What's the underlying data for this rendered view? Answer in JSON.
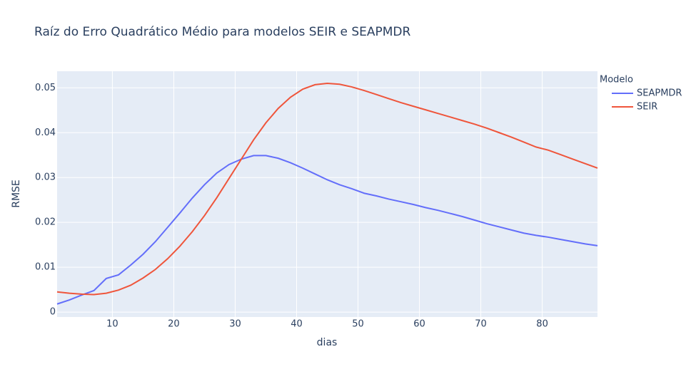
{
  "chart_data": {
    "type": "line",
    "title": "Raíz do Erro Quadrático Médio para modelos SEIR e SEAPMDR",
    "x_label": "dias",
    "y_label": "RMSE",
    "legend_title": "Modelo",
    "x": [
      1,
      3,
      5,
      7,
      9,
      11,
      13,
      15,
      17,
      19,
      21,
      23,
      25,
      27,
      29,
      31,
      33,
      35,
      37,
      39,
      41,
      43,
      45,
      47,
      49,
      51,
      53,
      55,
      57,
      59,
      61,
      63,
      65,
      67,
      69,
      71,
      73,
      75,
      77,
      79,
      81,
      83,
      85,
      87,
      89
    ],
    "series": [
      {
        "name": "SEAPMDR",
        "color": "#636efa",
        "values": [
          0.0018,
          0.0027,
          0.0038,
          0.0048,
          0.0075,
          0.0083,
          0.0105,
          0.0129,
          0.0157,
          0.0189,
          0.0221,
          0.0254,
          0.0284,
          0.031,
          0.0329,
          0.0341,
          0.0349,
          0.0349,
          0.0343,
          0.0333,
          0.0321,
          0.0308,
          0.0295,
          0.0284,
          0.0275,
          0.0265,
          0.0259,
          0.0252,
          0.0246,
          0.024,
          0.0233,
          0.0227,
          0.022,
          0.0213,
          0.0205,
          0.0197,
          0.019,
          0.0183,
          0.0176,
          0.0171,
          0.0167,
          0.0162,
          0.0157,
          0.0152,
          0.0148
        ]
      },
      {
        "name": "SEIR",
        "color": "#ef553b",
        "values": [
          0.0045,
          0.0042,
          0.004,
          0.0039,
          0.0042,
          0.0049,
          0.006,
          0.0076,
          0.0095,
          0.0119,
          0.0147,
          0.0179,
          0.0215,
          0.0255,
          0.0298,
          0.0341,
          0.0384,
          0.0422,
          0.0454,
          0.0479,
          0.0497,
          0.0507,
          0.051,
          0.0508,
          0.0502,
          0.0494,
          0.0485,
          0.0476,
          0.0467,
          0.0459,
          0.0451,
          0.0443,
          0.0435,
          0.0427,
          0.0419,
          0.041,
          0.04,
          0.039,
          0.0379,
          0.0368,
          0.0361,
          0.0351,
          0.0341,
          0.0331,
          0.0321
        ]
      }
    ],
    "xlim": [
      1,
      89
    ],
    "xticks": [
      10,
      20,
      30,
      40,
      50,
      60,
      70,
      80
    ],
    "ylim": [
      -0.0011,
      0.0537
    ],
    "yticks": [
      0,
      0.01,
      0.02,
      0.03,
      0.04,
      0.05
    ],
    "grid": true,
    "legend": "right"
  }
}
